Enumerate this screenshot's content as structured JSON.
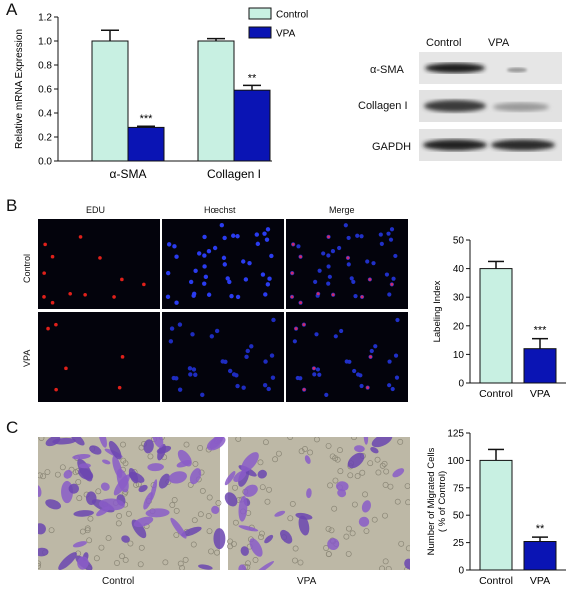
{
  "panels": {
    "a": "A",
    "b": "B",
    "c": "C"
  },
  "colors": {
    "control": "#c8f0e2",
    "vpa": "#0a14b4",
    "bar_edge": "#111111"
  },
  "chart_data": [
    {
      "type": "bar",
      "ylabel": "Relative mRNA Expression",
      "categories": [
        "α-SMA",
        "Collagen I"
      ],
      "ylim": [
        0,
        1.2
      ],
      "yticks": [
        "0.0",
        "0.2",
        "0.4",
        "0.6",
        "0.8",
        "1.0",
        "1.2"
      ],
      "series": [
        {
          "name": "Control",
          "values": [
            1.0,
            1.0
          ],
          "errors": [
            0.09,
            0.02
          ]
        },
        {
          "name": "VPA",
          "values": [
            0.28,
            0.59
          ],
          "errors": [
            0.01,
            0.04
          ]
        }
      ],
      "significance": [
        "***",
        "**"
      ]
    },
    {
      "type": "bar",
      "ylabel": "Labeling Index",
      "categories": [
        "Control",
        "VPA"
      ],
      "ylim": [
        0,
        50
      ],
      "yticks": [
        "0",
        "10",
        "20",
        "30",
        "40",
        "50"
      ],
      "values": [
        40,
        12
      ],
      "errors": [
        2.5,
        3.5
      ],
      "significance": [
        "",
        "***"
      ]
    },
    {
      "type": "bar",
      "ylabel": "Number of Migrated Cells",
      "ylabel2": "( % of Control)",
      "categories": [
        "Control",
        "VPA"
      ],
      "ylim": [
        0,
        125
      ],
      "yticks": [
        "0",
        "25",
        "50",
        "75",
        "100",
        "125"
      ],
      "values": [
        100,
        26
      ],
      "errors": [
        10,
        4
      ],
      "significance": [
        "",
        "**"
      ]
    }
  ],
  "western_blot": {
    "columns": [
      "Control",
      "VPA"
    ],
    "rows": [
      "α-SMA",
      "Collagen I",
      "GAPDH"
    ]
  },
  "microscopy": {
    "columns": [
      "EDU",
      "Hœchst",
      "Merge"
    ],
    "rows": [
      "Control",
      "VPA"
    ]
  },
  "transwell": {
    "labels": [
      "Control",
      "VPA"
    ]
  }
}
